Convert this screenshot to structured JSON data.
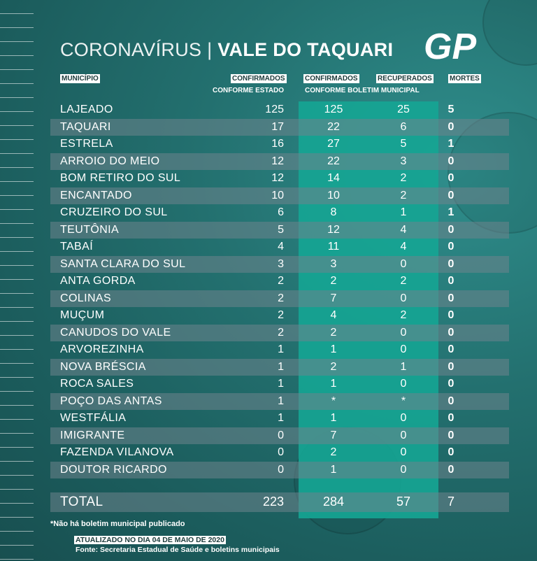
{
  "title": {
    "part1": "CORONAVÍRUS | ",
    "part2": "VALE DO TAQUARI"
  },
  "logo": {
    "text": "GP"
  },
  "headers": {
    "municipio": "MUNICÍPIO",
    "confirmados_estado": "CONFIRMADOS",
    "conforme_estado": "CONFORME ESTADO",
    "confirmados_boletim": "CONFIRMADOS",
    "recuperados": "RECUPERADOS",
    "conforme_boletim": "CONFORME BOLETIM MUNICIPAL",
    "mortes": "MORTES"
  },
  "rows": [
    {
      "name": "LAJEADO",
      "estado": "125",
      "boletim": "125",
      "recuperados": "25",
      "mortes": "5"
    },
    {
      "name": "TAQUARI",
      "estado": "17",
      "boletim": "22",
      "recuperados": "6",
      "mortes": "0"
    },
    {
      "name": "ESTRELA",
      "estado": "16",
      "boletim": "27",
      "recuperados": "5",
      "mortes": "1"
    },
    {
      "name": "ARROIO DO MEIO",
      "estado": "12",
      "boletim": "22",
      "recuperados": "3",
      "mortes": "0"
    },
    {
      "name": "BOM RETIRO DO SUL",
      "estado": "12",
      "boletim": "14",
      "recuperados": "2",
      "mortes": "0"
    },
    {
      "name": "ENCANTADO",
      "estado": "10",
      "boletim": "10",
      "recuperados": "2",
      "mortes": "0"
    },
    {
      "name": "CRUZEIRO DO SUL",
      "estado": "6",
      "boletim": "8",
      "recuperados": "1",
      "mortes": "1"
    },
    {
      "name": "TEUTÔNIA",
      "estado": "5",
      "boletim": "12",
      "recuperados": "4",
      "mortes": "0"
    },
    {
      "name": "TABAÍ",
      "estado": "4",
      "boletim": "11",
      "recuperados": "4",
      "mortes": "0"
    },
    {
      "name": "SANTA CLARA DO SUL",
      "estado": "3",
      "boletim": "3",
      "recuperados": "0",
      "mortes": "0"
    },
    {
      "name": "ANTA GORDA",
      "estado": "2",
      "boletim": "2",
      "recuperados": "2",
      "mortes": "0"
    },
    {
      "name": "COLINAS",
      "estado": "2",
      "boletim": "7",
      "recuperados": "0",
      "mortes": "0"
    },
    {
      "name": "MUÇUM",
      "estado": "2",
      "boletim": "4",
      "recuperados": "2",
      "mortes": "0"
    },
    {
      "name": "CANUDOS DO VALE",
      "estado": "2",
      "boletim": "2",
      "recuperados": "0",
      "mortes": "0"
    },
    {
      "name": "ARVOREZINHA",
      "estado": "1",
      "boletim": "1",
      "recuperados": "0",
      "mortes": "0"
    },
    {
      "name": "NOVA BRÉSCIA",
      "estado": "1",
      "boletim": "2",
      "recuperados": "1",
      "mortes": "0"
    },
    {
      "name": "ROCA SALES",
      "estado": "1",
      "boletim": "1",
      "recuperados": "0",
      "mortes": "0"
    },
    {
      "name": "POÇO DAS ANTAS",
      "estado": "1",
      "boletim": "*",
      "recuperados": "*",
      "mortes": "0"
    },
    {
      "name": "WESTFÁLIA",
      "estado": "1",
      "boletim": "1",
      "recuperados": "0",
      "mortes": "0"
    },
    {
      "name": "IMIGRANTE",
      "estado": "0",
      "boletim": "7",
      "recuperados": "0",
      "mortes": "0"
    },
    {
      "name": "FAZENDA VILANOVA",
      "estado": "0",
      "boletim": "2",
      "recuperados": "0",
      "mortes": "0"
    },
    {
      "name": "DOUTOR RICARDO",
      "estado": "0",
      "boletim": "1",
      "recuperados": "0",
      "mortes": "0"
    }
  ],
  "total": {
    "name": "TOTAL",
    "estado": "223",
    "boletim": "284",
    "recuperados": "57",
    "mortes": "7"
  },
  "note": "*Não há boletim municipal publicado",
  "updated": "ATUALIZADO NO DIA 04 DE MAIO DE 2020",
  "source": "Fonte: Secretaria Estadual de Saúde e boletins municipais",
  "colors": {
    "accent_green": "#15a593",
    "background": "#1f6666",
    "band": "#6e848c"
  }
}
